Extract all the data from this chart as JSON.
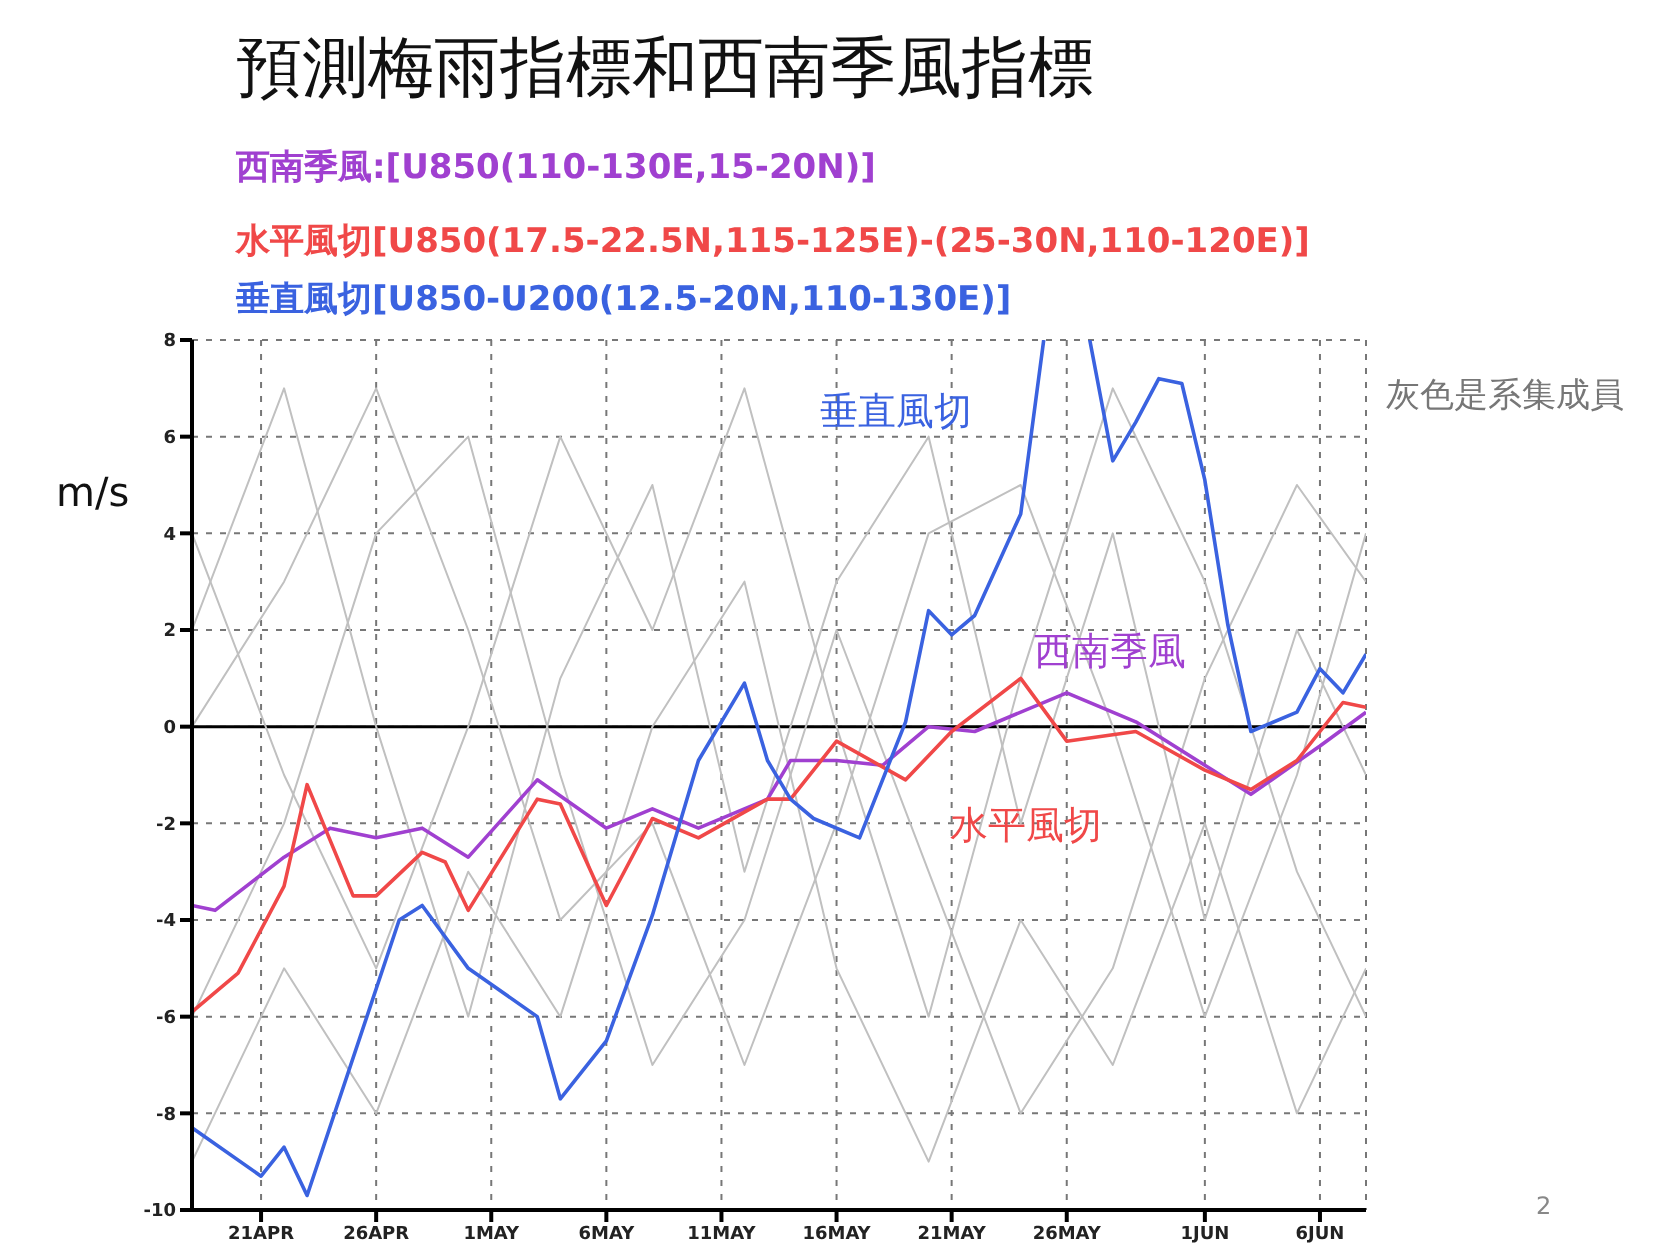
{
  "chart_data": {
    "type": "line",
    "title": "預測梅雨指標和西南季風指標",
    "ylabel": "m/s",
    "xlim": [
      "--04-18",
      "--06-08"
    ],
    "xticks": [
      {
        "value": "--04-21",
        "label": "21APR"
      },
      {
        "value": "--04-26",
        "label": "26APR"
      },
      {
        "value": "--05-01",
        "label": "1MAY"
      },
      {
        "value": "--05-06",
        "label": "6MAY"
      },
      {
        "value": "--05-11",
        "label": "11MAY"
      },
      {
        "value": "--05-16",
        "label": "16MAY"
      },
      {
        "value": "--05-21",
        "label": "21MAY"
      },
      {
        "value": "--05-26",
        "label": "26MAY"
      },
      {
        "value": "--06-01",
        "label": "1JUN"
      },
      {
        "value": "--06-06",
        "label": "6JUN"
      }
    ],
    "ylim": [
      -10,
      8
    ],
    "yticks": [
      -10,
      -8,
      -6,
      -4,
      -2,
      0,
      2,
      4,
      6,
      8
    ],
    "grid": true,
    "legend": "top",
    "marker": "none",
    "line_style": "solid",
    "ref_lines": [
      {
        "axis": "y",
        "value": 0,
        "color": "#000000"
      }
    ],
    "annotations": [
      "西南季風",
      "水平風切",
      "垂直風切",
      "灰色是系集成員",
      "2"
    ],
    "series": [
      {
        "color": "#c0c0c0",
        "x": [
          "--04-18",
          "--04-22",
          "--04-26",
          "--04-30",
          "--05-04",
          "--05-08",
          "--05-12",
          "--05-16",
          "--05-20",
          "--05-24",
          "--05-28",
          "--06-01",
          "--06-05",
          "--06-08"
        ],
        "values": [
          2,
          7,
          0,
          -6,
          1,
          5,
          -3,
          3,
          6,
          -2,
          4,
          -4,
          2,
          -1
        ]
      },
      {
        "color": "#c0c0c0",
        "x": [
          "--04-18",
          "--04-22",
          "--04-26",
          "--04-30",
          "--05-04",
          "--05-08",
          "--05-12",
          "--05-16",
          "--05-20",
          "--05-24",
          "--05-28",
          "--06-01",
          "--06-05",
          "--06-08"
        ],
        "values": [
          -6,
          -2,
          4,
          6,
          -1,
          -7,
          -4,
          2,
          -3,
          -8,
          -5,
          1,
          5,
          3
        ]
      },
      {
        "color": "#c0c0c0",
        "x": [
          "--04-18",
          "--04-22",
          "--04-26",
          "--04-30",
          "--05-04",
          "--05-08",
          "--05-12",
          "--05-16",
          "--05-20",
          "--05-24",
          "--05-28",
          "--06-01",
          "--06-05",
          "--06-08"
        ],
        "values": [
          4,
          -1,
          -5,
          0,
          6,
          2,
          7,
          0,
          -6,
          1,
          7,
          3,
          -3,
          -6
        ]
      },
      {
        "color": "#c0c0c0",
        "x": [
          "--04-18",
          "--04-22",
          "--04-26",
          "--04-30",
          "--05-04",
          "--05-08",
          "--05-12",
          "--05-16",
          "--05-20",
          "--05-24",
          "--05-28",
          "--06-01",
          "--06-05",
          "--06-08"
        ],
        "values": [
          -9,
          -5,
          -8,
          -3,
          -6,
          0,
          3,
          -5,
          -9,
          -4,
          -7,
          -2,
          -8,
          -5
        ]
      },
      {
        "color": "#c0c0c0",
        "x": [
          "--04-18",
          "--04-22",
          "--04-26",
          "--04-30",
          "--05-04",
          "--05-08",
          "--05-12",
          "--05-16",
          "--05-20",
          "--05-24",
          "--05-28",
          "--06-01",
          "--06-05",
          "--06-08"
        ],
        "values": [
          0,
          3,
          7,
          2,
          -4,
          -2,
          -7,
          -2,
          4,
          5,
          0,
          -6,
          -1,
          4
        ]
      },
      {
        "name": "西南季風:[U850(110-130E,15-20N)]",
        "color": "#a040d0",
        "x": [
          "--04-18",
          "--04-19",
          "--04-22",
          "--04-24",
          "--04-26",
          "--04-28",
          "--04-30",
          "--05-03",
          "--05-06",
          "--05-08",
          "--05-10",
          "--05-13",
          "--05-14",
          "--05-16",
          "--05-18",
          "--05-20",
          "--05-22",
          "--05-26",
          "--05-29",
          "--06-01",
          "--06-03",
          "--06-06",
          "--06-08"
        ],
        "values": [
          -3.7,
          -3.8,
          -2.7,
          -2.1,
          -2.3,
          -2.1,
          -2.7,
          -1.1,
          -2.1,
          -1.7,
          -2.1,
          -1.5,
          -0.7,
          -0.7,
          -0.8,
          0.0,
          -0.1,
          0.7,
          0.1,
          -0.8,
          -1.4,
          -0.4,
          0.3
        ]
      },
      {
        "name": "水平風切[U850(17.5-22.5N,115-125E)-(25-30N,110-120E)]",
        "color": "#f04848",
        "x": [
          "--04-18",
          "--04-20",
          "--04-22",
          "--04-23",
          "--04-25",
          "--04-26",
          "--04-28",
          "--04-29",
          "--04-30",
          "--05-03",
          "--05-04",
          "--05-06",
          "--05-08",
          "--05-10",
          "--05-13",
          "--05-14",
          "--05-16",
          "--05-19",
          "--05-21",
          "--05-24",
          "--05-26",
          "--05-29",
          "--06-01",
          "--06-03",
          "--06-05",
          "--06-07",
          "--06-08"
        ],
        "values": [
          -5.9,
          -5.1,
          -3.3,
          -1.2,
          -3.5,
          -3.5,
          -2.6,
          -2.8,
          -3.8,
          -1.5,
          -1.6,
          -3.7,
          -1.9,
          -2.3,
          -1.5,
          -1.5,
          -0.3,
          -1.1,
          -0.1,
          1.0,
          -0.3,
          -0.1,
          -0.9,
          -1.3,
          -0.7,
          0.5,
          0.4
        ]
      },
      {
        "name": "垂直風切[U850-U200(12.5-20N,110-130E)]",
        "color": "#3a62e0",
        "x": [
          "--04-18",
          "--04-21",
          "--04-22",
          "--04-23",
          "--04-27",
          "--04-28",
          "--04-30",
          "--05-03",
          "--05-04",
          "--05-06",
          "--05-08",
          "--05-10",
          "--05-12",
          "--05-13",
          "--05-14",
          "--05-15",
          "--05-17",
          "--05-19",
          "--05-20",
          "--05-21",
          "--05-22",
          "--05-24",
          "--05-25",
          "--05-26",
          "--05-27",
          "--05-28",
          "--05-29",
          "--05-30",
          "--05-31",
          "--06-01",
          "--06-02",
          "--06-03",
          "--06-05",
          "--06-06",
          "--06-07",
          "--06-08"
        ],
        "values": [
          -8.3,
          -9.3,
          -8.7,
          -9.7,
          -4.0,
          -3.7,
          -5.0,
          -6.0,
          -7.7,
          -6.5,
          -3.9,
          -0.7,
          0.9,
          -0.7,
          -1.5,
          -1.9,
          -2.3,
          0.1,
          2.4,
          1.9,
          2.3,
          4.4,
          8,
          null,
          8,
          5.5,
          6.3,
          7.2,
          7.1,
          5.1,
          2.1,
          -0.1,
          0.3,
          1.2,
          0.7,
          1.5
        ]
      }
    ]
  }
}
